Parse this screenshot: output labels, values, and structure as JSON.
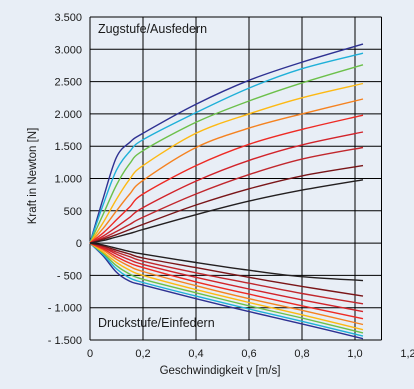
{
  "chart_data": {
    "type": "line",
    "title": "",
    "xlabel": "Geschwindigkeit v [m/s]",
    "ylabel": "Kraft in Newton [N]",
    "xlim": [
      0,
      1.2
    ],
    "ylim": [
      -1500,
      3500
    ],
    "x_ticks": [
      0,
      0.2,
      0.4,
      0.6,
      0.8,
      1.0,
      1.2
    ],
    "x_tick_labels": [
      "0",
      "0,2",
      "0,4",
      "0,6",
      "0,8",
      "1,0",
      "1,2"
    ],
    "y_ticks": [
      -1500,
      -1000,
      -500,
      0,
      500,
      1000,
      1500,
      2000,
      2500,
      3000,
      3500
    ],
    "y_tick_labels": [
      "- 1.500",
      "- 1.000",
      "- 500",
      "0",
      "500",
      "1.000",
      "1.500",
      "2.000",
      "2.500",
      "3.000",
      "3.500"
    ],
    "grid": true,
    "annotations": [
      {
        "text": "Zugstufe/Ausfedern",
        "x": 0.03,
        "y": 3250
      },
      {
        "text": "Druckstufe/Einfedern",
        "x": 0.03,
        "y": -1300
      }
    ],
    "series": [
      {
        "group": "zug",
        "color": "#2e3192",
        "values": [
          [
            0,
            0
          ],
          [
            0.05,
            700
          ],
          [
            0.1,
            1330
          ],
          [
            0.15,
            1560
          ],
          [
            0.2,
            1700
          ],
          [
            0.4,
            2150
          ],
          [
            0.6,
            2520
          ],
          [
            0.8,
            2800
          ],
          [
            1.03,
            3080
          ]
        ]
      },
      {
        "group": "zug",
        "color": "#1fb0d8",
        "values": [
          [
            0,
            0
          ],
          [
            0.05,
            600
          ],
          [
            0.1,
            1130
          ],
          [
            0.15,
            1420
          ],
          [
            0.2,
            1600
          ],
          [
            0.4,
            2020
          ],
          [
            0.6,
            2400
          ],
          [
            0.8,
            2700
          ],
          [
            1.03,
            2940
          ]
        ]
      },
      {
        "group": "zug",
        "color": "#6cc04a",
        "values": [
          [
            0,
            0
          ],
          [
            0.05,
            450
          ],
          [
            0.1,
            900
          ],
          [
            0.15,
            1230
          ],
          [
            0.2,
            1430
          ],
          [
            0.4,
            1870
          ],
          [
            0.6,
            2200
          ],
          [
            0.8,
            2480
          ],
          [
            1.03,
            2760
          ]
        ]
      },
      {
        "group": "zug",
        "color": "#fdb913",
        "values": [
          [
            0,
            0
          ],
          [
            0.05,
            320
          ],
          [
            0.1,
            680
          ],
          [
            0.15,
            990
          ],
          [
            0.2,
            1200
          ],
          [
            0.4,
            1700
          ],
          [
            0.6,
            2000
          ],
          [
            0.8,
            2250
          ],
          [
            1.03,
            2470
          ]
        ]
      },
      {
        "group": "zug",
        "color": "#f58220",
        "values": [
          [
            0,
            0
          ],
          [
            0.05,
            230
          ],
          [
            0.1,
            500
          ],
          [
            0.15,
            760
          ],
          [
            0.2,
            970
          ],
          [
            0.4,
            1480
          ],
          [
            0.6,
            1780
          ],
          [
            0.8,
            2000
          ],
          [
            1.03,
            2230
          ]
        ]
      },
      {
        "group": "zug",
        "color": "#ee2a24",
        "values": [
          [
            0,
            0
          ],
          [
            0.05,
            160
          ],
          [
            0.1,
            360
          ],
          [
            0.15,
            560
          ],
          [
            0.2,
            760
          ],
          [
            0.4,
            1200
          ],
          [
            0.6,
            1530
          ],
          [
            0.8,
            1760
          ],
          [
            1.03,
            1980
          ]
        ]
      },
      {
        "group": "zug",
        "color": "#d2232a",
        "values": [
          [
            0,
            0
          ],
          [
            0.05,
            110
          ],
          [
            0.1,
            250
          ],
          [
            0.15,
            400
          ],
          [
            0.2,
            550
          ],
          [
            0.4,
            960
          ],
          [
            0.6,
            1280
          ],
          [
            0.8,
            1520
          ],
          [
            1.03,
            1720
          ]
        ]
      },
      {
        "group": "zug",
        "color": "#c1272d",
        "values": [
          [
            0,
            0
          ],
          [
            0.05,
            80
          ],
          [
            0.1,
            180
          ],
          [
            0.15,
            290
          ],
          [
            0.2,
            400
          ],
          [
            0.4,
            760
          ],
          [
            0.6,
            1060
          ],
          [
            0.8,
            1300
          ],
          [
            1.03,
            1480
          ]
        ]
      },
      {
        "group": "zug",
        "color": "#7a1518",
        "values": [
          [
            0,
            0
          ],
          [
            0.05,
            60
          ],
          [
            0.1,
            130
          ],
          [
            0.15,
            210
          ],
          [
            0.2,
            290
          ],
          [
            0.4,
            590
          ],
          [
            0.6,
            840
          ],
          [
            0.8,
            1040
          ],
          [
            1.03,
            1200
          ]
        ]
      },
      {
        "group": "zug",
        "color": "#231f20",
        "values": [
          [
            0,
            0
          ],
          [
            0.05,
            40
          ],
          [
            0.1,
            95
          ],
          [
            0.15,
            150
          ],
          [
            0.2,
            210
          ],
          [
            0.4,
            440
          ],
          [
            0.6,
            650
          ],
          [
            0.8,
            820
          ],
          [
            1.03,
            980
          ]
        ]
      },
      {
        "group": "druck",
        "color": "#2e3192",
        "values": [
          [
            0,
            0
          ],
          [
            0.05,
            -200
          ],
          [
            0.1,
            -450
          ],
          [
            0.15,
            -590
          ],
          [
            0.2,
            -650
          ],
          [
            0.4,
            -860
          ],
          [
            0.6,
            -1060
          ],
          [
            0.8,
            -1250
          ],
          [
            1.03,
            -1480
          ]
        ]
      },
      {
        "group": "druck",
        "color": "#1fb0d8",
        "values": [
          [
            0,
            0
          ],
          [
            0.05,
            -180
          ],
          [
            0.1,
            -400
          ],
          [
            0.15,
            -540
          ],
          [
            0.2,
            -610
          ],
          [
            0.4,
            -820
          ],
          [
            0.6,
            -1020
          ],
          [
            0.8,
            -1210
          ],
          [
            1.03,
            -1440
          ]
        ]
      },
      {
        "group": "druck",
        "color": "#6cc04a",
        "values": [
          [
            0,
            0
          ],
          [
            0.05,
            -160
          ],
          [
            0.1,
            -350
          ],
          [
            0.15,
            -480
          ],
          [
            0.2,
            -560
          ],
          [
            0.4,
            -770
          ],
          [
            0.6,
            -970
          ],
          [
            0.8,
            -1160
          ],
          [
            1.03,
            -1390
          ]
        ]
      },
      {
        "group": "druck",
        "color": "#fdb913",
        "values": [
          [
            0,
            0
          ],
          [
            0.05,
            -140
          ],
          [
            0.1,
            -300
          ],
          [
            0.15,
            -420
          ],
          [
            0.2,
            -500
          ],
          [
            0.4,
            -720
          ],
          [
            0.6,
            -920
          ],
          [
            0.8,
            -1110
          ],
          [
            1.03,
            -1340
          ]
        ]
      },
      {
        "group": "druck",
        "color": "#f58220",
        "values": [
          [
            0,
            0
          ],
          [
            0.05,
            -110
          ],
          [
            0.1,
            -250
          ],
          [
            0.15,
            -360
          ],
          [
            0.2,
            -440
          ],
          [
            0.4,
            -660
          ],
          [
            0.6,
            -860
          ],
          [
            0.8,
            -1040
          ],
          [
            1.03,
            -1260
          ]
        ]
      },
      {
        "group": "druck",
        "color": "#ee2a24",
        "values": [
          [
            0,
            0
          ],
          [
            0.05,
            -90
          ],
          [
            0.1,
            -210
          ],
          [
            0.15,
            -310
          ],
          [
            0.2,
            -380
          ],
          [
            0.4,
            -600
          ],
          [
            0.6,
            -790
          ],
          [
            0.8,
            -970
          ],
          [
            1.03,
            -1170
          ]
        ]
      },
      {
        "group": "druck",
        "color": "#d2232a",
        "values": [
          [
            0,
            0
          ],
          [
            0.05,
            -70
          ],
          [
            0.1,
            -170
          ],
          [
            0.15,
            -260
          ],
          [
            0.2,
            -330
          ],
          [
            0.4,
            -530
          ],
          [
            0.6,
            -710
          ],
          [
            0.8,
            -880
          ],
          [
            1.03,
            -1060
          ]
        ]
      },
      {
        "group": "druck",
        "color": "#c1272d",
        "values": [
          [
            0,
            0
          ],
          [
            0.05,
            -60
          ],
          [
            0.1,
            -140
          ],
          [
            0.15,
            -210
          ],
          [
            0.2,
            -280
          ],
          [
            0.4,
            -460
          ],
          [
            0.6,
            -620
          ],
          [
            0.8,
            -780
          ],
          [
            1.03,
            -940
          ]
        ]
      },
      {
        "group": "druck",
        "color": "#7a1518",
        "values": [
          [
            0,
            0
          ],
          [
            0.05,
            -45
          ],
          [
            0.1,
            -110
          ],
          [
            0.15,
            -170
          ],
          [
            0.2,
            -230
          ],
          [
            0.4,
            -380
          ],
          [
            0.6,
            -530
          ],
          [
            0.8,
            -670
          ],
          [
            1.03,
            -820
          ]
        ]
      },
      {
        "group": "druck",
        "color": "#231f20",
        "values": [
          [
            0,
            0
          ],
          [
            0.05,
            -30
          ],
          [
            0.1,
            -80
          ],
          [
            0.15,
            -130
          ],
          [
            0.2,
            -170
          ],
          [
            0.4,
            -300
          ],
          [
            0.6,
            -420
          ],
          [
            0.8,
            -520
          ],
          [
            1.03,
            -580
          ]
        ]
      }
    ],
    "colors": {
      "background": "#e8eef6",
      "grid": "#000000"
    }
  }
}
